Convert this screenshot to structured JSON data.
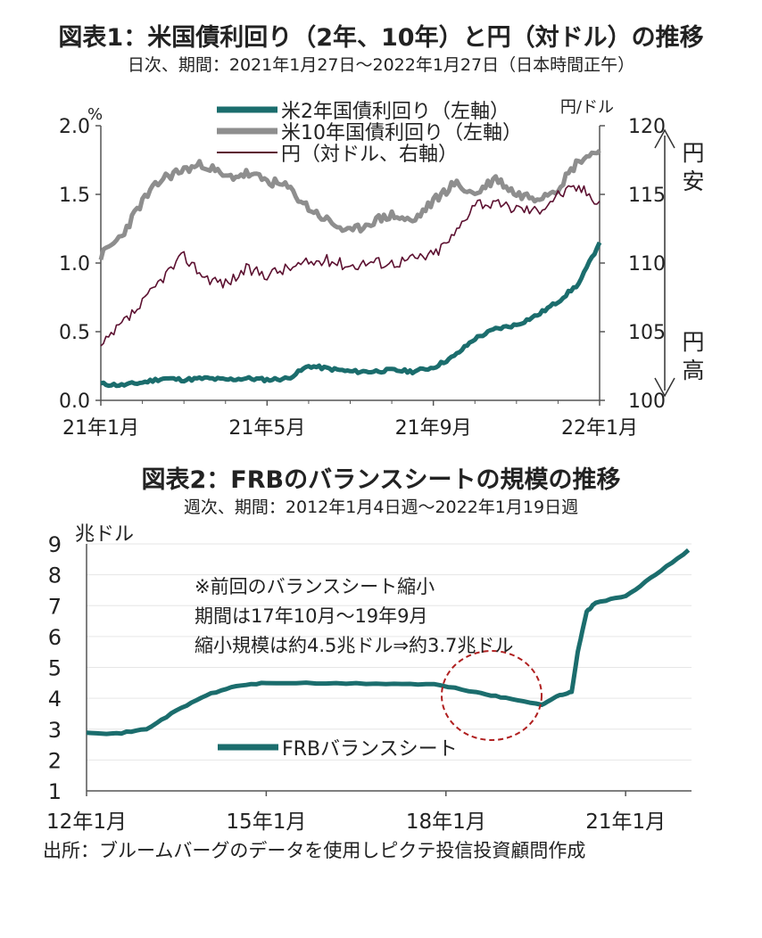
{
  "chart1_title": "図表1：米国債利回り（2年、10年）と円（対ドル）の推移",
  "chart1_subtitle": "日次、期間：2021年1月27日～2022年1月27日（日本時間正午）",
  "chart2_title": "図表2：FRBのバランスシートの規模の推移",
  "chart2_subtitle": "週次、期間：2012年1月4日週～2022年1月19日週",
  "source": "出所：ブルームバーグのデータを使用しピクテ投信投資顧問作成",
  "colors": {
    "teal": "#1b6d6d",
    "gray": "#8e8e8e",
    "maroon": "#5c1030",
    "circle": "#b02020",
    "axis": "#555555",
    "grid": "#e6e6e6"
  },
  "chart_data": [
    {
      "type": "line",
      "x_ticks": [
        "21年1月",
        "21年5月",
        "21年9月",
        "22年1月"
      ],
      "y_left": {
        "unit": "%",
        "ticks": [
          "0.0",
          "0.5",
          "1.0",
          "1.5",
          "2.0"
        ],
        "range": [
          0,
          2.0
        ]
      },
      "y_right": {
        "unit": "円/ドル",
        "ticks": [
          "100",
          "105",
          "110",
          "115",
          "120"
        ],
        "range": [
          100,
          120
        ]
      },
      "arrow_top_label": "円安",
      "arrow_bottom_label": "円高",
      "legend": [
        "米2年国債利回り（左軸）",
        "米10年国債利回り（左軸）",
        "円（対ドル、右軸）"
      ],
      "series": [
        {
          "name": "米2年国債利回り（左軸）",
          "axis": "left",
          "x": [
            0,
            0.5,
            1,
            1.5,
            2,
            2.5,
            3,
            3.5,
            4,
            4.5,
            5,
            5.5,
            6,
            6.5,
            7,
            7.5,
            8,
            8.5,
            9,
            9.5,
            10,
            10.5,
            11,
            11.5,
            12
          ],
          "values": [
            0.12,
            0.11,
            0.13,
            0.16,
            0.15,
            0.16,
            0.15,
            0.16,
            0.15,
            0.16,
            0.25,
            0.23,
            0.21,
            0.21,
            0.22,
            0.21,
            0.24,
            0.32,
            0.45,
            0.52,
            0.55,
            0.62,
            0.72,
            0.85,
            1.15
          ]
        },
        {
          "name": "米10年国債利回り（左軸）",
          "axis": "left",
          "x": [
            0,
            0.5,
            1,
            1.5,
            2,
            2.5,
            3,
            3.5,
            4,
            4.5,
            5,
            5.5,
            6,
            6.5,
            7,
            7.5,
            8,
            8.5,
            9,
            9.5,
            10,
            10.5,
            11,
            11.5,
            12
          ],
          "values": [
            1.05,
            1.2,
            1.45,
            1.62,
            1.68,
            1.72,
            1.62,
            1.65,
            1.6,
            1.55,
            1.4,
            1.3,
            1.22,
            1.3,
            1.35,
            1.3,
            1.45,
            1.58,
            1.5,
            1.62,
            1.5,
            1.48,
            1.55,
            1.75,
            1.82
          ]
        },
        {
          "name": "円（対ドル、右軸）",
          "axis": "right",
          "x": [
            0,
            0.5,
            1,
            1.5,
            2,
            2.5,
            3,
            3.5,
            4,
            4.5,
            5,
            5.5,
            6,
            6.5,
            7,
            7.5,
            8,
            8.5,
            9,
            9.5,
            10,
            10.5,
            11,
            11.5,
            12
          ],
          "values": [
            103.8,
            105.5,
            107.0,
            109.0,
            110.5,
            109.0,
            108.5,
            109.5,
            109.2,
            109.6,
            110.0,
            110.2,
            109.8,
            110.1,
            110.0,
            110.3,
            110.6,
            112.0,
            114.5,
            114.2,
            114.0,
            113.8,
            115.0,
            115.5,
            114.5
          ]
        }
      ]
    },
    {
      "type": "line",
      "x_ticks": [
        "12年1月",
        "15年1月",
        "18年1月",
        "21年1月"
      ],
      "y_unit": "兆ドル",
      "y_ticks": [
        "1",
        "2",
        "3",
        "4",
        "5",
        "6",
        "7",
        "8",
        "9"
      ],
      "ylim": [
        1,
        9
      ],
      "annotation": [
        "※前回のバランスシート縮小",
        "期間は17年10月～19年9月",
        "縮小規模は約4.5兆ドル⇒約3.7兆ドル"
      ],
      "legend": [
        "FRBバランスシート"
      ],
      "series": [
        {
          "name": "FRBバランスシート",
          "x": [
            2012.0,
            2012.5,
            2013.0,
            2013.5,
            2014.0,
            2014.5,
            2015.0,
            2016.0,
            2017.0,
            2017.8,
            2018.5,
            2019.0,
            2019.6,
            2019.9,
            2020.1,
            2020.2,
            2020.35,
            2020.5,
            2021.0,
            2021.5,
            2022.05
          ],
          "values": [
            2.9,
            2.85,
            3.0,
            3.6,
            4.1,
            4.4,
            4.5,
            4.48,
            4.47,
            4.45,
            4.2,
            4.0,
            3.8,
            4.1,
            4.2,
            5.5,
            6.8,
            7.1,
            7.3,
            8.0,
            8.8
          ]
        }
      ]
    }
  ]
}
